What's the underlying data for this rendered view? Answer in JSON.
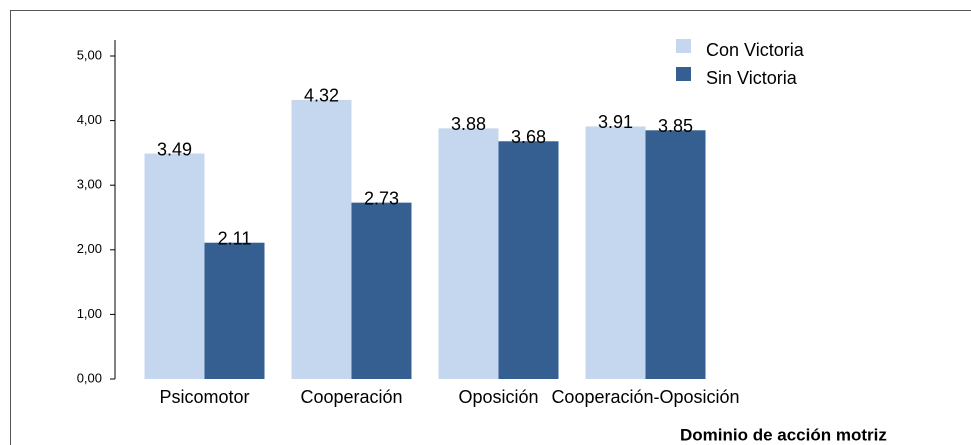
{
  "chart_data": {
    "type": "bar",
    "x_label": "Dominio de acción motriz",
    "categories": [
      "Psicomotor",
      "Cooperación",
      "Oposición",
      "Cooperación-Oposición"
    ],
    "series": [
      {
        "name": "Con Victoria",
        "color": "#c5d7ee",
        "values": [
          3.49,
          4.32,
          3.88,
          3.91
        ]
      },
      {
        "name": "Sin Victoria",
        "color": "#355f91",
        "values": [
          2.11,
          2.73,
          3.68,
          3.85
        ]
      }
    ],
    "ylim": [
      0,
      5
    ],
    "yticks": [
      {
        "value": 0,
        "label": "0,00"
      },
      {
        "value": 1,
        "label": "1,00"
      },
      {
        "value": 2,
        "label": "2,00"
      },
      {
        "value": 3,
        "label": "3,00"
      },
      {
        "value": 4,
        "label": "4,00"
      },
      {
        "value": 5,
        "label": "5,00"
      }
    ],
    "legend": "top-right"
  }
}
